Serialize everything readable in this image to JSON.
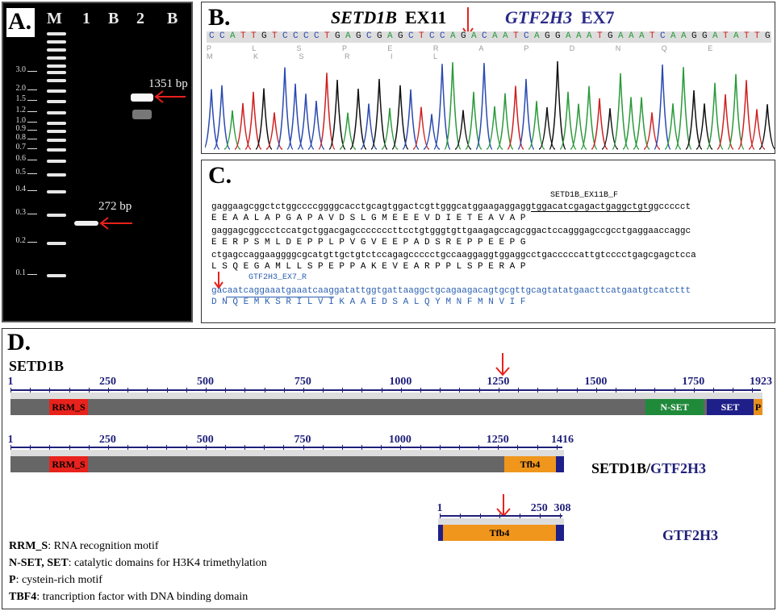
{
  "panelA": {
    "label": "A.",
    "lanes": [
      "M",
      "1",
      "B",
      "2",
      "B"
    ],
    "ladder_labels": [
      "3.0",
      "2.0",
      "1.5",
      "1.2",
      "1.0",
      "0.9",
      "0.8",
      "0.7",
      "0.6",
      "0.5",
      "0.4",
      "0.3",
      "0.2",
      "0.1"
    ],
    "band1_label": "272 bp",
    "band2_label": "1351 bp"
  },
  "panelB": {
    "label": "B.",
    "gene1": "SETD1B",
    "exon1": "EX11",
    "gene2": "GTF2H3",
    "exon2": "EX7",
    "sequence": "CCATTGTCCCCTGAGCGAGCTCCAGACAATCAGGAAATGAAATCAAGGATATTG",
    "aa": "P L S P E R A P D N Q E M K S R I L"
  },
  "panelC": {
    "label": "C.",
    "primer_f": "SETD1B_EX11B_F",
    "primer_r": "GTF2H3_EX7_R",
    "lines": [
      "gaggaagcggctctggccccggggcacctgcagtggactcgttgggcatggaagaggaggtggacatcgagactgaggctgtggccccct",
      "E  E  A  A  L  A  P  G  A  P  A  V  D  S  L  G  M  E  E  E  V  D  I  E  T  E  A  V  A  P",
      "gaggagcggccctccatgctggacgagcccccccttcctgtgggtgttgaagagccagcggactccagggagccgcctgaggaaccaggc",
      "E  E  R  P  S  M  L  D  E  P  P  L  P  V  G  V  E  E  P  A  D  S  R  E  P  P  E  E  P  G",
      "ctgagccaggaaggggcgcatgttgctgtctccagagccccctgccaaggaggtggaggcctgacccccattgtcccctgagcgagctcca",
      "L  S  Q  E  G  A  M  L  L  S  P  E  P  P  A  K  E  V  E  A  R  P  P  L  S  P  E  R  A  P",
      "gacaatcaggaaatgaaatcaaggatattggtgattaaggctgcagaagacagtgcgttgcagtatatgaacttcatgaatgtcatcttt",
      "D  N  Q  E  M  K  S  R  I  L  V  I  K  A  A  E  D  S  A  L  Q  Y  M  N  F  M  N  V  I  F"
    ]
  },
  "panelD": {
    "label": "D.",
    "protein1": {
      "name": "SETD1B",
      "length": 1923,
      "ticks": [
        "1",
        "250",
        "500",
        "750",
        "1000",
        "1250",
        "1500",
        "1750",
        "1923"
      ],
      "domains": [
        {
          "label": "RRM_S",
          "color": "#e8221c"
        },
        {
          "label": "N-SET",
          "color": "#1f8a3a"
        },
        {
          "label": "SET",
          "color": "#1f1f8a"
        },
        {
          "label": "P",
          "color": "#e8901c"
        }
      ]
    },
    "protein2": {
      "name_part1": "SETD1B/",
      "name_part2": "GTF2H3",
      "length": 1416,
      "ticks": [
        "1",
        "250",
        "500",
        "750",
        "1000",
        "1250",
        "1416"
      ],
      "domains": [
        {
          "label": "RRM_S",
          "color": "#e8221c"
        },
        {
          "label": "Tfb4",
          "color": "#f0961c"
        }
      ]
    },
    "protein3": {
      "name": "GTF2H3",
      "length": 308,
      "ticks": [
        "1",
        "250",
        "308"
      ],
      "domains": [
        {
          "label": "Tfb4",
          "color": "#f0961c"
        }
      ]
    },
    "legend": [
      {
        "term": "RRM_S",
        "desc": ": RNA recognition motif"
      },
      {
        "term": "N-SET, SET",
        "desc": ": catalytic domains for H3K4 trimethylation"
      },
      {
        "term": "P",
        "desc": ": cystein-rich motif"
      },
      {
        "term": "TBF4",
        "desc": ": trancription factor with DNA binding domain"
      }
    ]
  }
}
